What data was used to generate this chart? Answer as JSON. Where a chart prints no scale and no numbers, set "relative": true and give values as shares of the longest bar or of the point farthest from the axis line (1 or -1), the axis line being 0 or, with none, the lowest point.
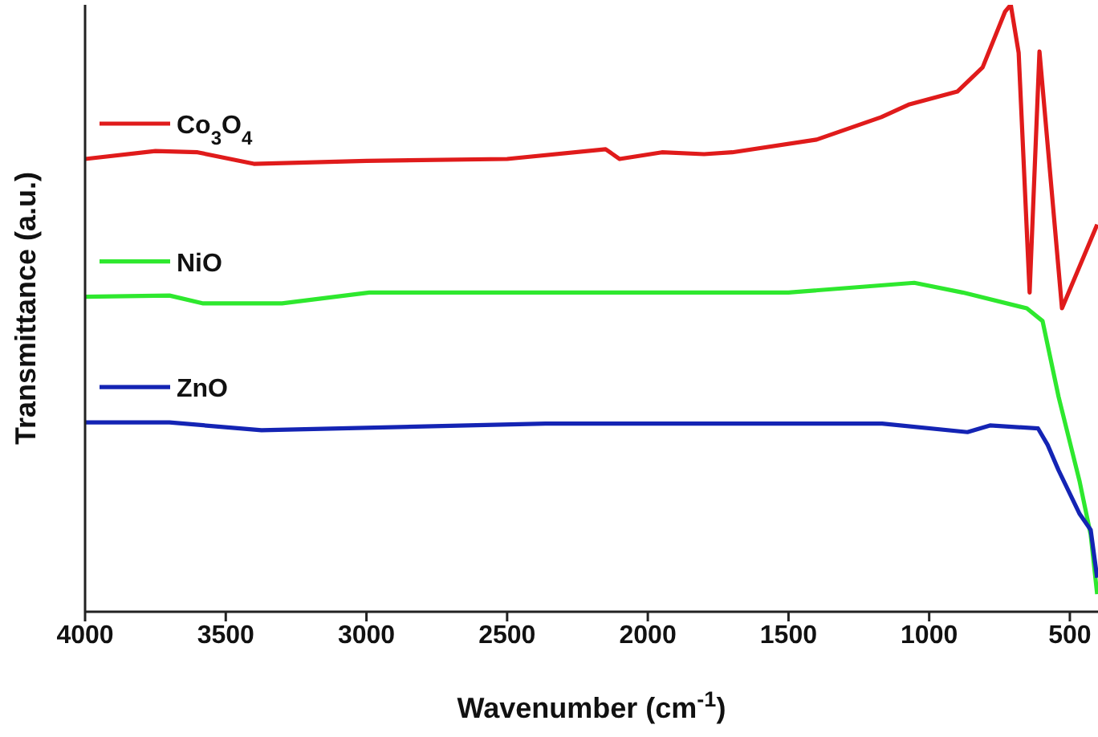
{
  "chart_data": {
    "type": "line",
    "xlabel": "Wavenumber (cm$^{-1}$)",
    "ylabel": "Transmittance (a.u.)",
    "relative": true,
    "xlim": [
      4000,
      400
    ],
    "xticks": [
      4000,
      3500,
      3000,
      2500,
      2000,
      1500,
      1000,
      500
    ],
    "grid": false,
    "legend": "top left",
    "marker": "none",
    "line_style": "solid",
    "series": [
      {
        "name": "Co$_{3}$O$_{4}$",
        "color": "#e01b1b",
        "x": [
          4000,
          3750,
          3600,
          3400,
          3000,
          2500,
          2150,
          2100,
          1950,
          1800,
          1700,
          1400,
          1170,
          1070,
          900,
          810,
          730,
          710,
          682,
          643,
          608,
          528,
          403
        ],
        "values": [
          0.746,
          0.759,
          0.757,
          0.738,
          0.743,
          0.746,
          0.762,
          0.746,
          0.757,
          0.754,
          0.757,
          0.778,
          0.815,
          0.836,
          0.857,
          0.897,
          0.989,
          1,
          0.921,
          0.526,
          0.923,
          0.5,
          0.638
        ]
      },
      {
        "name": "NiO",
        "color": "#2ee82e",
        "x": [
          4000,
          3700,
          3580,
          3300,
          2990,
          2500,
          1500,
          1053,
          881,
          653,
          597,
          540,
          465,
          426,
          403
        ],
        "values": [
          0.519,
          0.521,
          0.508,
          0.508,
          0.526,
          0.526,
          0.526,
          0.542,
          0.526,
          0.5,
          0.479,
          0.354,
          0.214,
          0.127,
          0.029
        ]
      },
      {
        "name": "ZnO",
        "color": "#1424b4",
        "x": [
          4000,
          3700,
          3373,
          2364,
          1167,
          864,
          784,
          613,
          579,
          540,
          465,
          426,
          403
        ],
        "values": [
          0.312,
          0.312,
          0.299,
          0.31,
          0.31,
          0.296,
          0.307,
          0.302,
          0.275,
          0.233,
          0.161,
          0.135,
          0.056
        ]
      }
    ]
  }
}
